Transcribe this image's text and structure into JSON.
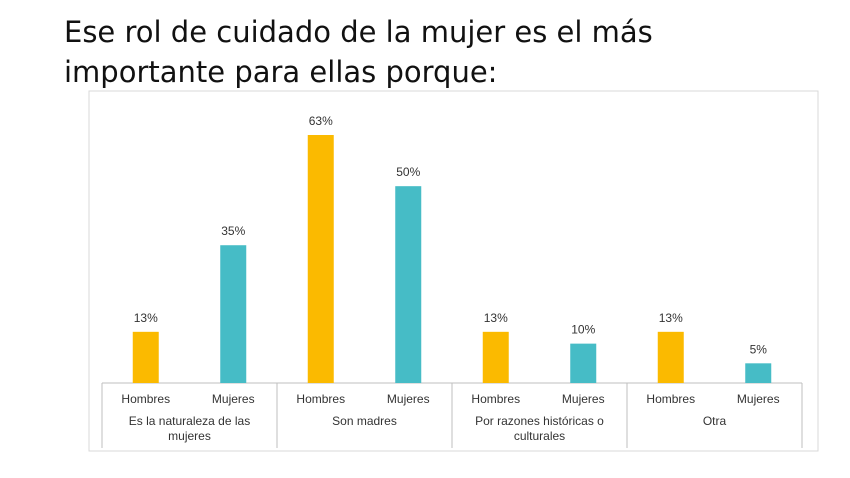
{
  "title_lines": [
    "Ese rol de cuidado de la mujer es el más",
    "importante para ellas porque:"
  ],
  "colors": {
    "hombres": "#FBBA00",
    "mujeres": "#46BCC6",
    "axis": "#BFBFBF",
    "frame": "#D9D9D9",
    "text": "#333333"
  },
  "chart_data": {
    "type": "bar",
    "groups": [
      {
        "label_lines": [
          "Es la naturaleza de las",
          "mujeres"
        ],
        "bars": [
          {
            "category": "Hombres",
            "value": 13,
            "label": "13%"
          },
          {
            "category": "Mujeres",
            "value": 35,
            "label": "35%"
          }
        ]
      },
      {
        "label_lines": [
          "Son madres"
        ],
        "bars": [
          {
            "category": "Hombres",
            "value": 63,
            "label": "63%"
          },
          {
            "category": "Mujeres",
            "value": 50,
            "label": "50%"
          }
        ]
      },
      {
        "label_lines": [
          "Por razones históricas o",
          "culturales"
        ],
        "bars": [
          {
            "category": "Hombres",
            "value": 13,
            "label": "13%"
          },
          {
            "category": "Mujeres",
            "value": 10,
            "label": "10%"
          }
        ]
      },
      {
        "label_lines": [
          "Otra"
        ],
        "bars": [
          {
            "category": "Hombres",
            "value": 13,
            "label": "13%"
          },
          {
            "category": "Mujeres",
            "value": 5,
            "label": "5%"
          }
        ]
      }
    ],
    "ylim": [
      0,
      63
    ],
    "grid": false,
    "legend": "none"
  }
}
